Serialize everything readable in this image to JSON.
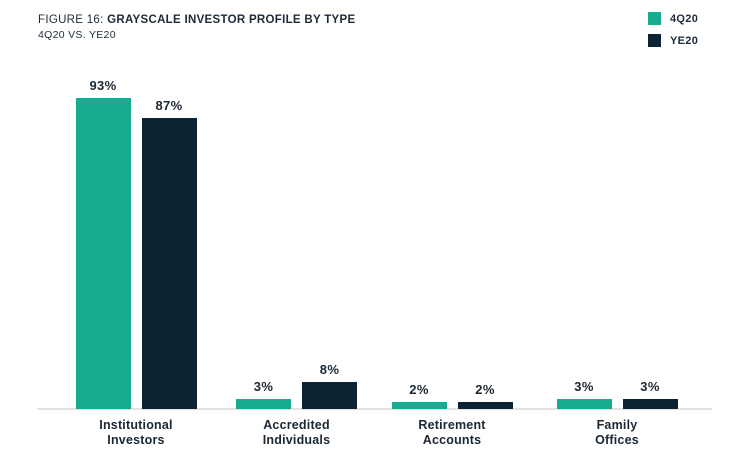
{
  "header": {
    "figure_label": "FIGURE 16:",
    "title": "GRAYSCALE INVESTOR PROFILE BY TYPE",
    "subtitle": "4Q20 VS. YE20"
  },
  "legend": {
    "position": "top-right",
    "items": [
      {
        "label": "4Q20",
        "color": "#18AB90"
      },
      {
        "label": "YE20",
        "color": "#0C2334"
      }
    ]
  },
  "colors": {
    "series_4q20": "#18AB90",
    "series_ye20": "#0C2334",
    "text": "#1B2733",
    "axis_line": "#e3e3e3",
    "background": "#ffffff"
  },
  "chart_data": {
    "type": "bar",
    "title": "FIGURE 16: GRAYSCALE INVESTOR PROFILE BY TYPE",
    "subtitle": "4Q20 VS. YE20",
    "categories": [
      "Institutional Investors",
      "Accredited Individuals",
      "Retirement Accounts",
      "Family Offices"
    ],
    "series": [
      {
        "name": "4Q20",
        "color": "#18AB90",
        "values": [
          93,
          3,
          2,
          3
        ]
      },
      {
        "name": "YE20",
        "color": "#0C2334",
        "values": [
          87,
          8,
          2,
          3
        ]
      }
    ],
    "value_labels": [
      [
        "93%",
        "3%",
        "2%",
        "3%"
      ],
      [
        "87%",
        "8%",
        "2%",
        "3%"
      ]
    ],
    "value_suffix": "%",
    "xlabel": "",
    "ylabel": "",
    "ylim": [
      0,
      100
    ],
    "grid": false,
    "y_axis_visible": false,
    "legend_position": "top-right"
  }
}
